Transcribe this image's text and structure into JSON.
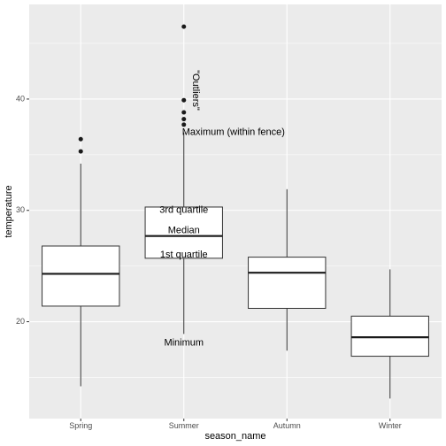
{
  "chart_data": {
    "type": "boxplot",
    "xlabel": "season_name",
    "ylabel": "temperature",
    "categories": [
      "Spring",
      "Summer",
      "Autumn",
      "Winter"
    ],
    "ylim": [
      11.3,
      48.5
    ],
    "yticks": [
      20,
      30,
      40
    ],
    "grid": true,
    "colors": {
      "panel": "#ebebeb",
      "grid": "#ffffff",
      "box_fill": "#ffffff",
      "line": "#333333",
      "text": "#4d4d4d"
    },
    "boxes": [
      {
        "category": "Spring",
        "whisker_low": 14.2,
        "q1": 21.4,
        "median": 24.3,
        "q3": 26.8,
        "whisker_high": 34.2,
        "outliers": [
          35.3,
          36.4
        ]
      },
      {
        "category": "Summer",
        "whisker_low": 18.9,
        "q1": 25.7,
        "median": 27.7,
        "q3": 30.3,
        "whisker_high": 37.0,
        "outliers": [
          37.7,
          38.2,
          38.8,
          39.9,
          46.5
        ]
      },
      {
        "category": "Autumn",
        "whisker_low": 17.4,
        "q1": 21.2,
        "median": 24.4,
        "q3": 25.8,
        "whisker_high": 31.9,
        "outliers": []
      },
      {
        "category": "Winter",
        "whisker_low": 13.1,
        "q1": 16.9,
        "median": 18.6,
        "q3": 20.5,
        "whisker_high": 24.7,
        "outliers": []
      }
    ],
    "annotations": [
      {
        "text": "\"Outliers\"",
        "category": "Summer",
        "y": 40.0,
        "rotate": 90
      },
      {
        "text": "Maximum (within fence)",
        "category": "Summer",
        "y": 37.0
      },
      {
        "text": "3rd quartile",
        "category": "Summer",
        "y": 30.0
      },
      {
        "text": "Median",
        "category": "Summer",
        "y": 28.2
      },
      {
        "text": "1st quartile",
        "category": "Summer",
        "y": 26.0
      },
      {
        "text": "Minimum",
        "category": "Summer",
        "y": 18.1
      }
    ]
  }
}
